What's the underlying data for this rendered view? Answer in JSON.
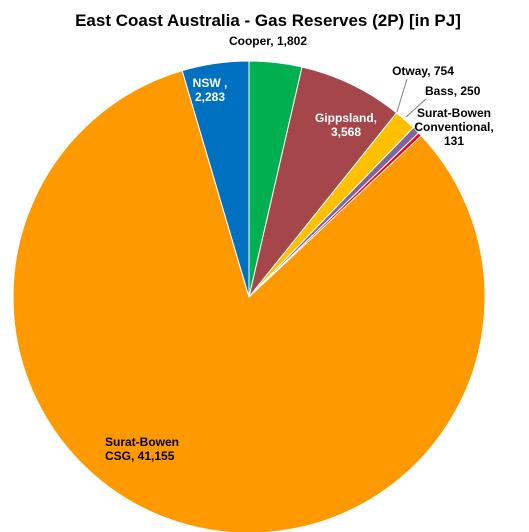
{
  "chart_data": {
    "type": "pie",
    "title": "East Coast Australia - Gas Reserves (2P) [in PJ]",
    "start_angle_deg": 0,
    "direction": "clockwise",
    "slices": [
      {
        "label_lines": [
          "Cooper,  1,802"
        ],
        "value": 1802,
        "color": "#00b050",
        "label_color": "#000000"
      },
      {
        "label_lines": [
          "Gippsland,",
          "3,568"
        ],
        "value": 3568,
        "color": "#a5474a",
        "label_color": "#ffffff"
      },
      {
        "label_lines": [
          "Otway,  754"
        ],
        "value": 754,
        "color": "#ffc000",
        "label_color": "#000000"
      },
      {
        "label_lines": [
          "Bass,  250"
        ],
        "value": 250,
        "color": "#8064a2",
        "label_color": "#000000"
      },
      {
        "label_lines": [
          "Surat-Bowen",
          "Conventional,",
          "131"
        ],
        "value": 131,
        "color": "#ff0000",
        "label_color": "#000000"
      },
      {
        "label_lines": [
          "Surat-Bowen",
          "CSG,  41,155"
        ],
        "value": 41155,
        "color": "#ff9900",
        "label_color": "#000000"
      },
      {
        "label_lines": [
          "NSW ,",
          "2,283"
        ],
        "value": 2283,
        "color": "#0070c0",
        "label_color": "#ffffff"
      }
    ]
  }
}
